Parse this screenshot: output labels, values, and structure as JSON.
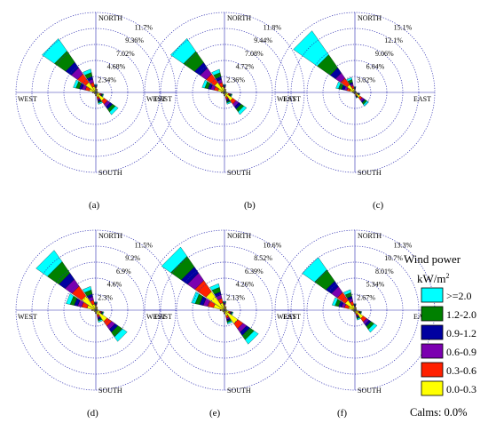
{
  "chart_data": {
    "type": "wind-rose",
    "directions": [
      "NORTH",
      "EAST",
      "SOUTH",
      "WEST"
    ],
    "legend": {
      "title": "Wind power",
      "unit_base": "kW/m",
      "unit_sup": "2",
      "bins": [
        {
          "label": ">=2.0",
          "color": "#00ffff"
        },
        {
          "label": "1.2-2.0",
          "color": "#008000"
        },
        {
          "label": "0.9-1.2",
          "color": "#0000a0"
        },
        {
          "label": "0.6-0.9",
          "color": "#7b00b0"
        },
        {
          "label": "0.3-0.6",
          "color": "#ff2000"
        },
        {
          "label": "0.0-0.3",
          "color": "#ffff00"
        }
      ],
      "calms": "Calms: 0.0%"
    },
    "panels": [
      {
        "label": "(a)",
        "rings": [
          "2.34%",
          "4.68%",
          "7.02%",
          "9.36%",
          "11.7%"
        ],
        "max": 11.7
      },
      {
        "label": "(b)",
        "rings": [
          "2.36%",
          "4.72%",
          "7.08%",
          "9.44%",
          "11.8%"
        ],
        "max": 11.8
      },
      {
        "label": "(c)",
        "rings": [
          "3.02%",
          "6.04%",
          "9.06%",
          "12.1%",
          "15.1%"
        ],
        "max": 15.1
      },
      {
        "label": "(d)",
        "rings": [
          "2.3%",
          "4.6%",
          "6.9%",
          "9.2%",
          "11.5%"
        ],
        "max": 11.5
      },
      {
        "label": "(e)",
        "rings": [
          "2.13%",
          "4.26%",
          "6.39%",
          "8.52%",
          "10.6%"
        ],
        "max": 10.6
      },
      {
        "label": "(f)",
        "rings": [
          "2.67%",
          "5.34%",
          "8.01%",
          "10.7%",
          "13.3%"
        ],
        "max": 13.3
      }
    ],
    "sector_directions_deg": [
      0,
      22.5,
      45,
      67.5,
      90,
      112.5,
      135,
      157.5,
      180,
      202.5,
      225,
      247.5,
      270,
      292.5,
      315,
      337.5
    ],
    "sector_bins_order": [
      ">=2.0",
      "1.2-2.0",
      "0.9-1.2",
      "0.6-0.9",
      "0.3-0.6",
      "0.0-0.3"
    ],
    "sector_frequencies_percent": [
      [
        [
          0.1,
          0.1,
          0.1,
          0.1,
          0.1,
          0.7
        ],
        [
          0,
          0,
          0,
          0,
          0.1,
          0.4
        ],
        [
          0,
          0,
          0,
          0,
          0,
          0.3
        ],
        [
          0,
          0,
          0,
          0,
          0,
          0.3
        ],
        [
          0,
          0,
          0,
          0,
          0,
          0.3
        ],
        [
          0.1,
          0.1,
          0.1,
          0.1,
          0.2,
          0.6
        ],
        [
          0.5,
          0.5,
          0.4,
          0.5,
          0.6,
          1.5
        ],
        [
          0.2,
          0.2,
          0.2,
          0.2,
          0.3,
          0.7
        ],
        [
          0,
          0,
          0,
          0,
          0.1,
          0.4
        ],
        [
          0,
          0,
          0,
          0,
          0,
          0.3
        ],
        [
          0,
          0,
          0,
          0,
          0,
          0.3
        ],
        [
          0,
          0,
          0,
          0,
          0,
          0.3
        ],
        [
          0,
          0,
          0,
          0,
          0.1,
          0.4
        ],
        [
          0.4,
          0.5,
          0.4,
          0.5,
          0.6,
          1.0
        ],
        [
          2.2,
          2.0,
          1.0,
          1.1,
          1.5,
          1.8
        ],
        [
          0.5,
          0.6,
          0.4,
          0.5,
          0.6,
          0.9
        ]
      ],
      [
        [
          0.1,
          0.1,
          0.1,
          0.1,
          0.1,
          0.7
        ],
        [
          0,
          0,
          0,
          0,
          0.1,
          0.4
        ],
        [
          0,
          0,
          0,
          0,
          0,
          0.3
        ],
        [
          0,
          0,
          0,
          0,
          0,
          0.3
        ],
        [
          0,
          0,
          0,
          0,
          0,
          0.3
        ],
        [
          0.1,
          0.1,
          0.1,
          0.1,
          0.2,
          0.6
        ],
        [
          0.5,
          0.5,
          0.4,
          0.5,
          0.6,
          1.5
        ],
        [
          0.2,
          0.2,
          0.2,
          0.2,
          0.3,
          0.7
        ],
        [
          0,
          0,
          0,
          0,
          0.1,
          0.4
        ],
        [
          0,
          0,
          0,
          0,
          0,
          0.3
        ],
        [
          0,
          0,
          0,
          0,
          0,
          0.3
        ],
        [
          0,
          0,
          0,
          0,
          0,
          0.3
        ],
        [
          0,
          0,
          0,
          0,
          0.1,
          0.4
        ],
        [
          0.4,
          0.5,
          0.4,
          0.5,
          0.6,
          1.0
        ],
        [
          2.3,
          2.0,
          1.0,
          1.1,
          1.5,
          1.8
        ],
        [
          0.5,
          0.6,
          0.4,
          0.5,
          0.6,
          0.9
        ]
      ],
      [
        [
          0.1,
          0.1,
          0.1,
          0.1,
          0.1,
          0.6
        ],
        [
          0,
          0,
          0,
          0,
          0,
          0.3
        ],
        [
          0,
          0,
          0,
          0,
          0,
          0.3
        ],
        [
          0,
          0,
          0,
          0,
          0,
          0.3
        ],
        [
          0,
          0,
          0,
          0,
          0,
          0.3
        ],
        [
          0.1,
          0.1,
          0.1,
          0.1,
          0.1,
          0.5
        ],
        [
          0.4,
          0.4,
          0.3,
          0.4,
          0.5,
          1.2
        ],
        [
          0.1,
          0.1,
          0.1,
          0.1,
          0.2,
          0.5
        ],
        [
          0,
          0,
          0,
          0,
          0,
          0.3
        ],
        [
          0,
          0,
          0,
          0,
          0,
          0.3
        ],
        [
          0,
          0,
          0,
          0,
          0,
          0.3
        ],
        [
          0,
          0,
          0,
          0,
          0,
          0.3
        ],
        [
          0,
          0,
          0,
          0,
          0.1,
          0.4
        ],
        [
          0.5,
          0.6,
          0.5,
          0.5,
          0.6,
          1.0
        ],
        [
          5.5,
          3.0,
          1.2,
          1.2,
          1.5,
          1.8
        ],
        [
          0.4,
          0.5,
          0.3,
          0.4,
          0.5,
          0.8
        ]
      ],
      [
        [
          0.1,
          0.1,
          0.1,
          0.1,
          0.1,
          0.7
        ],
        [
          0,
          0,
          0,
          0,
          0.1,
          0.4
        ],
        [
          0,
          0,
          0,
          0,
          0,
          0.3
        ],
        [
          0,
          0,
          0,
          0,
          0,
          0.3
        ],
        [
          0,
          0,
          0,
          0,
          0,
          0.3
        ],
        [
          0.1,
          0.1,
          0.1,
          0.1,
          0.2,
          0.6
        ],
        [
          0.8,
          0.8,
          0.5,
          0.6,
          0.8,
          2.0
        ],
        [
          0.2,
          0.2,
          0.2,
          0.2,
          0.3,
          0.7
        ],
        [
          0,
          0,
          0,
          0,
          0.1,
          0.4
        ],
        [
          0,
          0,
          0,
          0,
          0,
          0.3
        ],
        [
          0,
          0,
          0,
          0,
          0,
          0.3
        ],
        [
          0,
          0,
          0,
          0,
          0,
          0.3
        ],
        [
          0,
          0,
          0,
          0,
          0.1,
          0.5
        ],
        [
          0.6,
          0.6,
          0.5,
          0.6,
          0.8,
          1.3
        ],
        [
          2.0,
          2.0,
          1.1,
          1.2,
          1.7,
          2.5
        ],
        [
          0.5,
          0.6,
          0.4,
          0.5,
          0.6,
          0.9
        ]
      ],
      [
        [
          0.1,
          0.1,
          0.1,
          0.1,
          0.1,
          0.7
        ],
        [
          0,
          0,
          0,
          0,
          0.1,
          0.4
        ],
        [
          0,
          0,
          0,
          0,
          0,
          0.3
        ],
        [
          0,
          0,
          0,
          0,
          0,
          0.3
        ],
        [
          0,
          0,
          0,
          0,
          0,
          0.3
        ],
        [
          0.1,
          0.1,
          0.1,
          0.1,
          0.2,
          0.6
        ],
        [
          0.7,
          0.7,
          0.5,
          0.6,
          0.8,
          2.2
        ],
        [
          0.2,
          0.2,
          0.2,
          0.2,
          0.3,
          0.8
        ],
        [
          0,
          0,
          0,
          0,
          0.1,
          0.4
        ],
        [
          0,
          0,
          0,
          0,
          0,
          0.3
        ],
        [
          0,
          0,
          0,
          0,
          0,
          0.3
        ],
        [
          0,
          0,
          0,
          0,
          0,
          0.3
        ],
        [
          0,
          0,
          0,
          0,
          0.1,
          0.5
        ],
        [
          0.5,
          0.6,
          0.5,
          0.6,
          0.8,
          1.5
        ],
        [
          1.5,
          1.7,
          1.0,
          1.2,
          1.8,
          3.0
        ],
        [
          0.5,
          0.6,
          0.4,
          0.5,
          0.6,
          1.0
        ]
      ],
      [
        [
          0.1,
          0.1,
          0.1,
          0.1,
          0.1,
          0.6
        ],
        [
          0,
          0,
          0,
          0,
          0.1,
          0.4
        ],
        [
          0,
          0,
          0,
          0,
          0,
          0.3
        ],
        [
          0,
          0,
          0,
          0,
          0,
          0.3
        ],
        [
          0,
          0,
          0,
          0,
          0,
          0.3
        ],
        [
          0.1,
          0.1,
          0.1,
          0.1,
          0.2,
          0.6
        ],
        [
          0.6,
          0.6,
          0.4,
          0.5,
          0.7,
          1.7
        ],
        [
          0.2,
          0.2,
          0.2,
          0.2,
          0.3,
          0.6
        ],
        [
          0,
          0,
          0,
          0,
          0.1,
          0.4
        ],
        [
          0,
          0,
          0,
          0,
          0,
          0.3
        ],
        [
          0,
          0,
          0,
          0,
          0,
          0.3
        ],
        [
          0,
          0,
          0,
          0,
          0,
          0.3
        ],
        [
          0,
          0,
          0,
          0,
          0.1,
          0.4
        ],
        [
          0.5,
          0.6,
          0.5,
          0.5,
          0.7,
          1.1
        ],
        [
          2.5,
          2.3,
          1.1,
          1.2,
          1.6,
          2.0
        ],
        [
          0.5,
          0.6,
          0.4,
          0.5,
          0.6,
          0.9
        ]
      ]
    ]
  }
}
